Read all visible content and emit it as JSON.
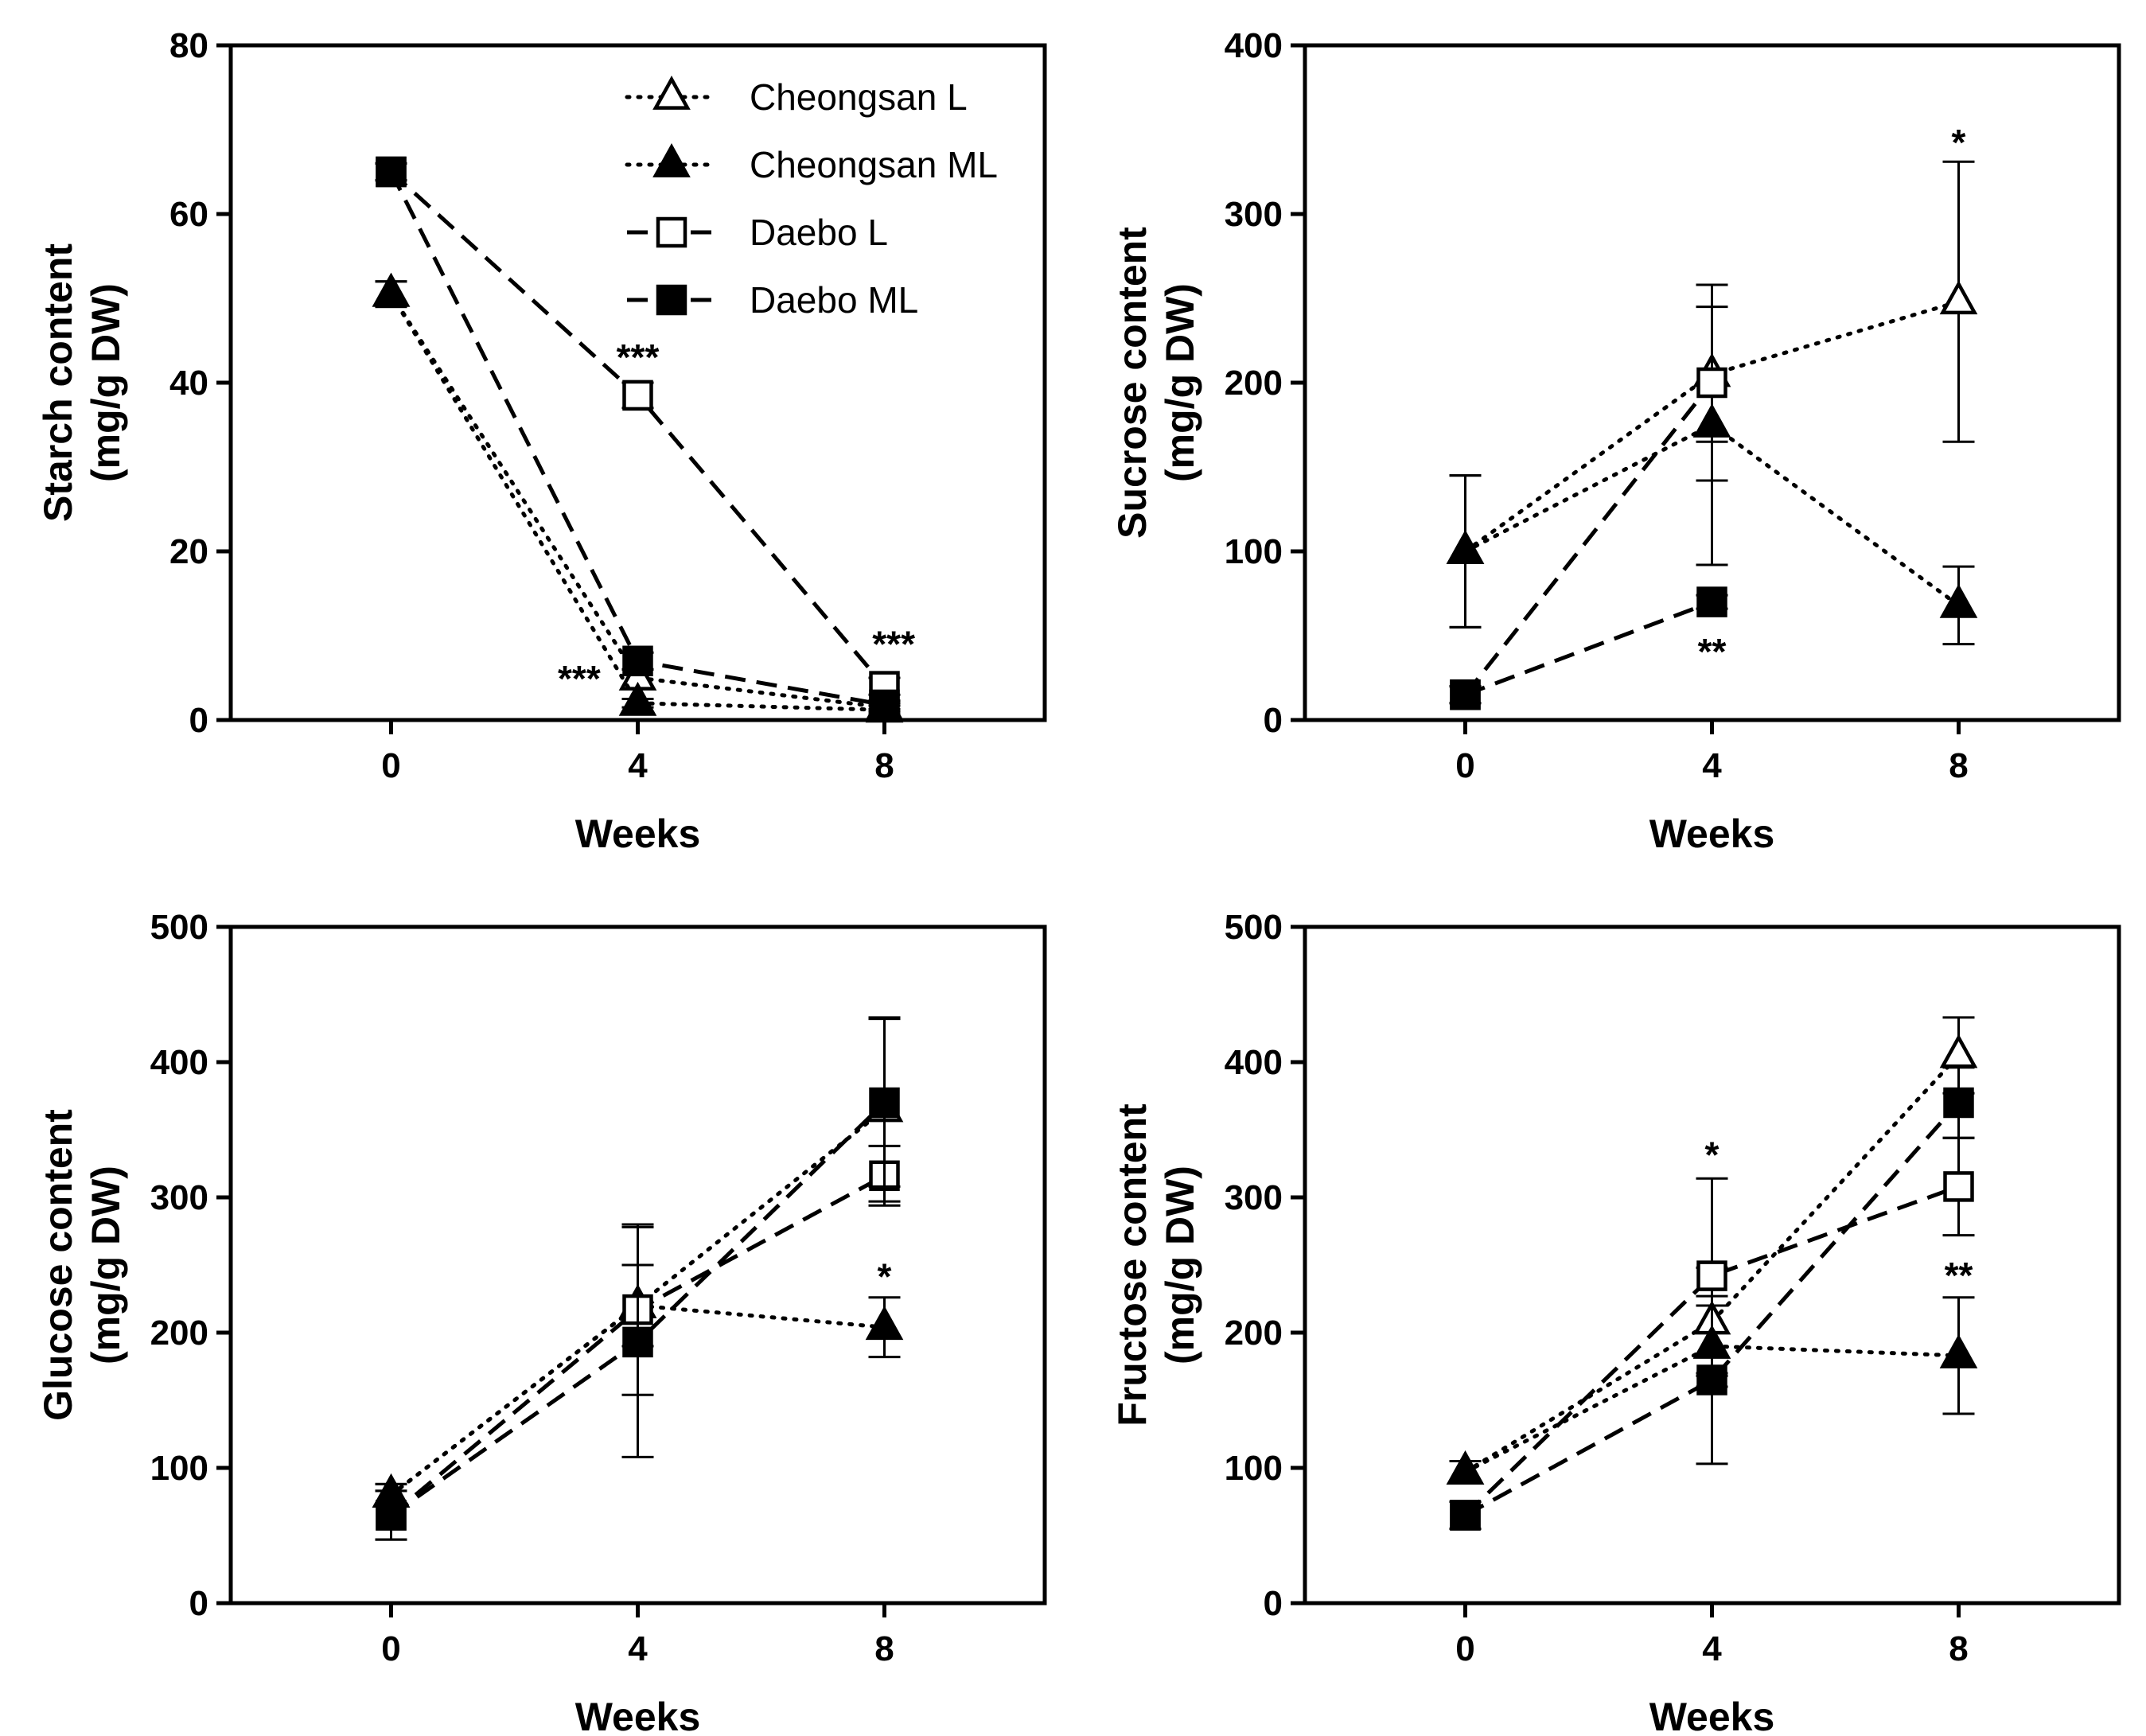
{
  "legend": {
    "items": [
      {
        "label": "Cheongsan L",
        "marker": "triangle-open",
        "dash": "dotted"
      },
      {
        "label": "Cheongsan ML",
        "marker": "triangle-filled",
        "dash": "dotted"
      },
      {
        "label": "Daebo L",
        "marker": "square-open",
        "dash": "dashed"
      },
      {
        "label": "Daebo ML",
        "marker": "square-filled",
        "dash": "dashed"
      }
    ]
  },
  "chart_data": [
    {
      "type": "line",
      "panel": "top-left",
      "xlabel": "Weeks",
      "ylabel": [
        "Starch content",
        "(mg/g DW)"
      ],
      "x": [
        0,
        4,
        8
      ],
      "xlim": [
        -2.6,
        10.6
      ],
      "ylim": [
        0,
        80
      ],
      "yticks": [
        0,
        20,
        40,
        60,
        80
      ],
      "xticks": [
        0,
        4,
        8
      ],
      "legend_position": "top-right",
      "series": [
        {
          "name": "Cheongsan L",
          "values": [
            50.5,
            5,
            1.5
          ],
          "err": [
            1.5,
            1,
            0.5
          ]
        },
        {
          "name": "Cheongsan ML",
          "values": [
            50.5,
            2,
            1.2
          ],
          "err": [
            1.5,
            0.5,
            0.5
          ]
        },
        {
          "name": "Daebo L",
          "values": [
            65,
            38.5,
            4
          ],
          "err": [
            1,
            1.5,
            1
          ]
        },
        {
          "name": "Daebo ML",
          "values": [
            65,
            7,
            1.8
          ],
          "err": [
            1,
            1,
            0.5
          ]
        }
      ],
      "annotations": [
        {
          "text": "***",
          "x": 4,
          "y": 41.5
        },
        {
          "text": "***",
          "x": 3.05,
          "y": 3.4
        },
        {
          "text": "***",
          "x": 8.15,
          "y": 7.5
        }
      ]
    },
    {
      "type": "line",
      "panel": "top-right",
      "xlabel": "Weeks",
      "ylabel": [
        "Sucrose content",
        "(mg/g DW)"
      ],
      "x": [
        0,
        4,
        8
      ],
      "xlim": [
        -2.6,
        10.6
      ],
      "ylim": [
        0,
        400
      ],
      "yticks": [
        0,
        100,
        200,
        300,
        400
      ],
      "xticks": [
        0,
        4,
        8
      ],
      "series": [
        {
          "name": "Cheongsan L",
          "values": [
            100,
            205,
            248
          ],
          "err": [
            45,
            40,
            83
          ]
        },
        {
          "name": "Cheongsan ML",
          "values": [
            100,
            175,
            68
          ],
          "err": [
            45,
            83,
            23
          ]
        },
        {
          "name": "Daebo L",
          "values": [
            15,
            200,
            null
          ],
          "err": [
            5,
            58,
            null
          ]
        },
        {
          "name": "Daebo ML",
          "values": [
            15,
            70,
            null
          ],
          "err": [
            5,
            4,
            null
          ]
        }
      ],
      "annotations": [
        {
          "text": "*",
          "x": 8,
          "y": 335
        },
        {
          "text": "**",
          "x": 4,
          "y": 33
        }
      ]
    },
    {
      "type": "line",
      "panel": "bottom-left",
      "xlabel": "Weeks",
      "ylabel": [
        "Glucose content",
        "(mg/g DW)"
      ],
      "x": [
        0,
        4,
        8
      ],
      "xlim": [
        -2.6,
        10.6
      ],
      "ylim": [
        0,
        500
      ],
      "yticks": [
        0,
        100,
        200,
        300,
        400,
        500
      ],
      "xticks": [
        0,
        4,
        8
      ],
      "series": [
        {
          "name": "Cheongsan L",
          "values": [
            80,
            220,
            365
          ],
          "err": [
            8,
            30,
            68
          ]
        },
        {
          "name": "Cheongsan ML",
          "values": [
            80,
            220,
            204
          ],
          "err": [
            8,
            30,
            22
          ]
        },
        {
          "name": "Daebo L",
          "values": [
            65,
            217,
            316
          ],
          "err": [
            18,
            63,
            22
          ]
        },
        {
          "name": "Daebo ML",
          "values": [
            65,
            193,
            370
          ],
          "err": [
            18,
            85,
            62
          ]
        }
      ],
      "annotations": [
        {
          "text": "*",
          "x": 8,
          "y": 232
        }
      ]
    },
    {
      "type": "line",
      "panel": "bottom-right",
      "xlabel": "Weeks",
      "ylabel": [
        "Fructose content",
        "(mg/g DW)"
      ],
      "x": [
        0,
        4,
        8
      ],
      "xlim": [
        -2.6,
        10.6
      ],
      "ylim": [
        0,
        500
      ],
      "yticks": [
        0,
        100,
        200,
        300,
        400,
        500
      ],
      "xticks": [
        0,
        4,
        8
      ],
      "series": [
        {
          "name": "Cheongsan L",
          "values": [
            97,
            208,
            405
          ],
          "err": [
            8,
            40,
            28
          ]
        },
        {
          "name": "Cheongsan ML",
          "values": [
            97,
            190,
            183
          ],
          "err": [
            8,
            30,
            43
          ]
        },
        {
          "name": "Daebo L",
          "values": [
            65,
            242,
            308
          ],
          "err": [
            10,
            72,
            36
          ]
        },
        {
          "name": "Daebo ML",
          "values": [
            65,
            165,
            370
          ],
          "err": [
            10,
            62,
            26
          ]
        }
      ],
      "annotations": [
        {
          "text": "*",
          "x": 4,
          "y": 322
        },
        {
          "text": "**",
          "x": 8,
          "y": 233
        }
      ]
    }
  ]
}
